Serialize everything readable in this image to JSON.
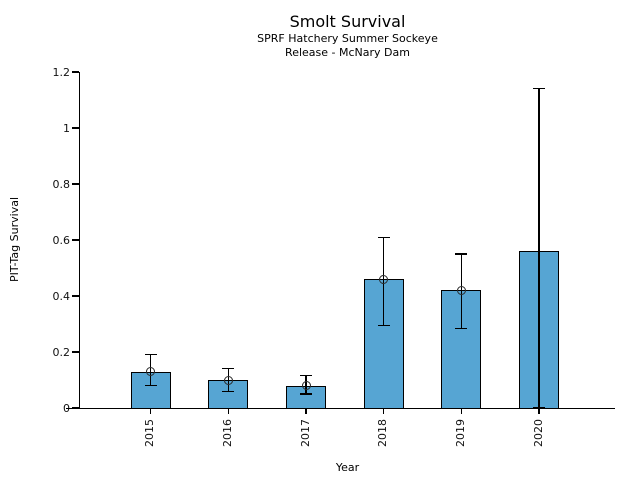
{
  "chart_data": {
    "type": "bar",
    "title": "Smolt Survival",
    "subtitle": [
      "SPRF Hatchery Summer Sockeye",
      "Release - McNary Dam"
    ],
    "xlabel": "Year",
    "ylabel": "PIT-Tag Survival",
    "categories": [
      "2015",
      "2016",
      "2017",
      "2018",
      "2019",
      "2020"
    ],
    "values": [
      0.13,
      0.1,
      0.08,
      0.46,
      0.42,
      0.56
    ],
    "error_bars": {
      "low": [
        0.08,
        0.06,
        0.05,
        0.295,
        0.285,
        0.0
      ],
      "high": [
        0.19,
        0.14,
        0.115,
        0.61,
        0.55,
        1.14
      ]
    },
    "point_markers": [
      true,
      true,
      true,
      true,
      true,
      false
    ],
    "ylim": [
      0,
      1.2
    ],
    "yticks": [
      "0",
      "0.2",
      "0.4",
      "0.6",
      "0.8",
      "1",
      "1.2"
    ],
    "grid": false,
    "legend": null,
    "bar_color": "#56a5d3",
    "bar_edge_color": "#000000",
    "error_color": "#000000"
  }
}
